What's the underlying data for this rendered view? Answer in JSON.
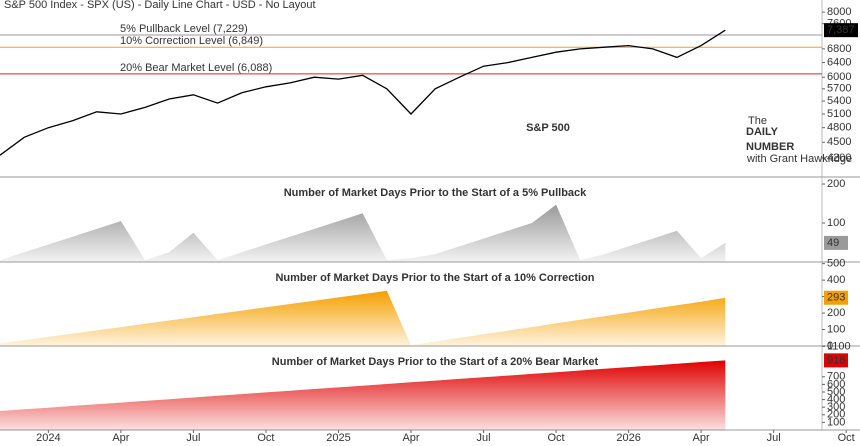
{
  "chart_data": [
    {
      "type": "line",
      "subtitle": "S&P 500 Index - SPX (US) - Daily Line Chart - USD - No Layout",
      "title": "S&P 500",
      "logo": {
        "top": "The",
        "line1": "DAILY",
        "line2": "NUMBER",
        "byline": "with Grant Hawkridge"
      },
      "x": [
        "2023-11",
        "2023-12",
        "2024-01",
        "2024-02",
        "2024-03",
        "2024-04",
        "2024-05",
        "2024-06",
        "2024-07",
        "2024-08",
        "2024-09",
        "2024-10",
        "2024-11",
        "2024-12",
        "2025-01",
        "2025-02",
        "2025-03",
        "2025-04",
        "2025-05",
        "2025-06",
        "2025-07",
        "2025-08",
        "2025-09",
        "2025-10",
        "2025-11",
        "2025-12",
        "2026-01",
        "2026-02",
        "2026-03",
        "2026-04",
        "2026-05"
      ],
      "values": [
        4250,
        4600,
        4800,
        4950,
        5150,
        5100,
        5250,
        5450,
        5550,
        5350,
        5600,
        5750,
        5850,
        6000,
        5950,
        6050,
        5700,
        5100,
        5700,
        6000,
        6300,
        6400,
        6550,
        6700,
        6800,
        6850,
        6900,
        6800,
        6550,
        6900,
        7387
      ],
      "color": "#000000",
      "log": true,
      "xlim": [
        "2023-11",
        "2026-09"
      ],
      "ylim": [
        3860,
        8440
      ],
      "yticks": [
        4200,
        4500,
        4800,
        5100,
        5400,
        5700,
        6000,
        6400,
        6800,
        7600,
        8000
      ],
      "current": {
        "value": 7387,
        "label": "7,387"
      },
      "levels": [
        {
          "label": "5% Pullback Level (7,229)",
          "value": 7229,
          "color": "#9a9a9a"
        },
        {
          "label": "10% Correction Level (6,849)",
          "value": 6849,
          "color": "#f0a020"
        },
        {
          "label": "20% Bear Market Level (6,088)",
          "value": 6088,
          "color": "#e02020"
        }
      ]
    },
    {
      "type": "area",
      "title": "Number of Market Days Prior to the Start of a 5% Pullback",
      "color": "#9a9a9a",
      "x": [
        "2023-11",
        "2023-12",
        "2024-01",
        "2024-02",
        "2024-03",
        "2024-04",
        "2024-05",
        "2024-06",
        "2024-07",
        "2024-08",
        "2024-09",
        "2024-10",
        "2024-11",
        "2024-12",
        "2025-01",
        "2025-02",
        "2025-03",
        "2025-04",
        "2025-05",
        "2025-06",
        "2025-07",
        "2025-08",
        "2025-09",
        "2025-10",
        "2025-11",
        "2025-12",
        "2026-01",
        "2026-02",
        "2026-03",
        "2026-04",
        "2026-05"
      ],
      "values": [
        5,
        25,
        45,
        65,
        85,
        105,
        5,
        25,
        75,
        5,
        25,
        45,
        65,
        85,
        105,
        125,
        5,
        10,
        20,
        40,
        60,
        80,
        100,
        147,
        5,
        20,
        40,
        60,
        80,
        10,
        49
      ],
      "xlim": [
        "2023-11",
        "2026-09"
      ],
      "ylim": [
        0,
        218
      ],
      "yticks": [
        100,
        200
      ],
      "current": 49
    },
    {
      "type": "area",
      "title": "Number of Market Days Prior to the Start of a 10% Correction",
      "color": "#f5a000",
      "x": [
        "2023-11",
        "2023-12",
        "2024-01",
        "2024-02",
        "2024-03",
        "2024-04",
        "2024-05",
        "2024-06",
        "2024-07",
        "2024-08",
        "2024-09",
        "2024-10",
        "2024-11",
        "2024-12",
        "2025-01",
        "2025-02",
        "2025-03",
        "2025-04",
        "2025-05",
        "2025-06",
        "2025-07",
        "2025-08",
        "2025-09",
        "2025-10",
        "2025-11",
        "2025-12",
        "2026-01",
        "2026-02",
        "2026-03",
        "2026-04",
        "2026-05"
      ],
      "values": [
        15,
        35,
        55,
        75,
        95,
        115,
        135,
        155,
        175,
        195,
        215,
        235,
        255,
        275,
        295,
        315,
        335,
        5,
        27,
        49,
        71,
        93,
        115,
        137,
        159,
        181,
        203,
        225,
        247,
        269,
        293
      ],
      "xlim": [
        "2023-11",
        "2026-09"
      ],
      "ylim": [
        0,
        510
      ],
      "yticks": [
        0,
        100,
        200,
        300,
        400,
        500
      ],
      "current": 293
    },
    {
      "type": "area",
      "title": "Number of Market Days Prior to the Start of a 20% Bear Market",
      "color": "#e00000",
      "x": [
        "2023-11",
        "2023-12",
        "2024-01",
        "2024-02",
        "2024-03",
        "2024-04",
        "2024-05",
        "2024-06",
        "2024-07",
        "2024-08",
        "2024-09",
        "2024-10",
        "2024-11",
        "2024-12",
        "2025-01",
        "2025-02",
        "2025-03",
        "2025-04",
        "2025-05",
        "2025-06",
        "2025-07",
        "2025-08",
        "2025-09",
        "2025-10",
        "2025-11",
        "2025-12",
        "2026-01",
        "2026-02",
        "2026-03",
        "2026-04",
        "2026-05"
      ],
      "values": [
        250,
        272,
        294,
        317,
        339,
        361,
        383,
        405,
        428,
        450,
        472,
        494,
        516,
        539,
        561,
        583,
        605,
        627,
        650,
        672,
        694,
        716,
        738,
        761,
        783,
        805,
        827,
        849,
        872,
        894,
        916
      ],
      "xlim": [
        "2023-11",
        "2026-09"
      ],
      "ylim": [
        0,
        1105
      ],
      "yticks": [
        100,
        200,
        300,
        400,
        500,
        600,
        700,
        1100
      ],
      "current": 916,
      "xticks": [
        {
          "value": "2024-01",
          "label": "2024"
        },
        {
          "value": "2024-04",
          "label": "Apr"
        },
        {
          "value": "2024-07",
          "label": "Jul"
        },
        {
          "value": "2024-10",
          "label": "Oct"
        },
        {
          "value": "2025-01",
          "label": "2025"
        },
        {
          "value": "2025-04",
          "label": "Apr"
        },
        {
          "value": "2025-07",
          "label": "Jul"
        },
        {
          "value": "2025-10",
          "label": "Oct"
        },
        {
          "value": "2026-01",
          "label": "2026"
        },
        {
          "value": "2026-04",
          "label": "Apr"
        },
        {
          "value": "2026-07",
          "label": "Jul"
        },
        {
          "value": "2026-10",
          "label": "Oct"
        }
      ]
    }
  ]
}
